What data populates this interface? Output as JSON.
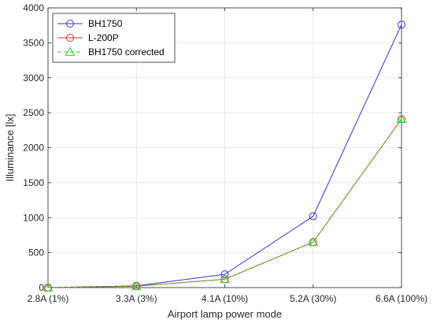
{
  "chart_data": {
    "type": "line",
    "title": "",
    "xlabel": "Airport lamp power mode",
    "ylabel": "Illuminance [lx]",
    "categories": [
      "2.8A (1%)",
      "3.3A (3%)",
      "4.1A (10%)",
      "5.2A (30%)",
      "6.6A (100%)"
    ],
    "ylim": [
      0,
      4000
    ],
    "yticks": [
      0,
      500,
      1000,
      1500,
      2000,
      2500,
      3000,
      3500,
      4000
    ],
    "grid": true,
    "legend_position": "top-left",
    "series": [
      {
        "name": "BH1750",
        "values": [
          0,
          25,
          190,
          1020,
          3760
        ],
        "color": "#3232c8",
        "marker": "circle",
        "dash": "solid"
      },
      {
        "name": "L-200P",
        "values": [
          0,
          20,
          120,
          650,
          2410
        ],
        "color": "#e8302c",
        "marker": "circle",
        "dash": "solid"
      },
      {
        "name": "BH1750 corrected",
        "values": [
          0,
          20,
          120,
          650,
          2410
        ],
        "color": "#2bd12b",
        "marker": "triangle",
        "dash": "dashed"
      }
    ]
  }
}
